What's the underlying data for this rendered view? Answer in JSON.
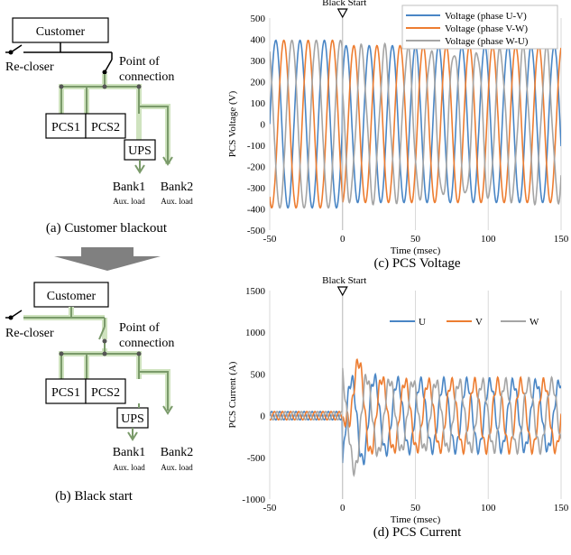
{
  "diagram_a": {
    "customer": "Customer",
    "recloser": "Re-closer",
    "poc_line1": "Point of",
    "poc_line2": "connection",
    "pcs1": "PCS1",
    "pcs2": "PCS2",
    "ups": "UPS",
    "bank1": "Bank1",
    "bank2": "Bank2",
    "aux1": "Aux. load",
    "aux2": "Aux. load",
    "caption": "(a) Customer blackout"
  },
  "diagram_b": {
    "customer": "Customer",
    "recloser": "Re-closer",
    "poc_line1": "Point of",
    "poc_line2": "connection",
    "pcs1": "PCS1",
    "pcs2": "PCS2",
    "ups": "UPS",
    "bank1": "Bank1",
    "bank2": "Bank2",
    "aux1": "Aux. load",
    "aux2": "Aux. load",
    "caption": "(b) Black start"
  },
  "colors": {
    "green_wire": "#7a9a6a",
    "green_glow": "#cfe3bf",
    "arrow_gray": "#808080",
    "black_wire": "#000000",
    "u": "#4a86c5",
    "v": "#ed7d31",
    "w": "#a5a5a5",
    "grid": "#d9d9d9"
  },
  "chart_data": [
    {
      "type": "line",
      "caption": "(c) PCS Voltage",
      "xlabel": "Time (msec)",
      "ylabel": "PCS Voltage (V)",
      "xlim": [
        -50,
        150
      ],
      "ylim": [
        -500,
        500
      ],
      "xticks": [
        -50,
        0,
        50,
        100,
        150
      ],
      "yticks": [
        -500,
        -400,
        -300,
        -200,
        -100,
        0,
        100,
        200,
        300,
        400,
        500
      ],
      "grid": "vertical",
      "legend_position": "top-right",
      "annotation": {
        "text": "Black Start",
        "x": 0
      },
      "series": [
        {
          "name": "Voltage (phase U-V)",
          "color": "#4a86c5",
          "amplitude_pre": 395,
          "amplitude_post": 370,
          "frequency_hz": 60,
          "phase_deg": 0
        },
        {
          "name": "Voltage (phase V-W)",
          "color": "#ed7d31",
          "amplitude_pre": 395,
          "amplitude_post": 370,
          "frequency_hz": 60,
          "phase_deg": -120
        },
        {
          "name": "Voltage (phase W-U)",
          "color": "#a5a5a5",
          "amplitude_pre": 395,
          "amplitude_post": 350,
          "frequency_hz": 60,
          "phase_deg": 120
        }
      ]
    },
    {
      "type": "line",
      "caption": "(d) PCS Current",
      "xlabel": "Time (msec)",
      "ylabel": "PCS Current (A)",
      "xlim": [
        -50,
        150
      ],
      "ylim": [
        -1000,
        1500
      ],
      "xticks": [
        -50,
        0,
        50,
        100,
        150
      ],
      "yticks": [
        -1000,
        -500,
        0,
        500,
        1000,
        1500
      ],
      "grid": "vertical",
      "legend_position": "top-right",
      "annotation": {
        "text": "Black Start",
        "x": 0
      },
      "series": [
        {
          "name": "U",
          "color": "#4a86c5",
          "pre_amplitude": 50,
          "post_amplitude": 400,
          "dc_offset": 0,
          "phase_deg": 0
        },
        {
          "name": "V",
          "color": "#ed7d31",
          "pre_amplitude": 50,
          "post_amplitude": 400,
          "dc_offset": 0,
          "phase_deg": -120,
          "peak": 1030
        },
        {
          "name": "W",
          "color": "#a5a5a5",
          "pre_amplitude": 50,
          "post_amplitude": 400,
          "dc_offset": 0,
          "phase_deg": 120,
          "trough": -790
        }
      ]
    }
  ]
}
